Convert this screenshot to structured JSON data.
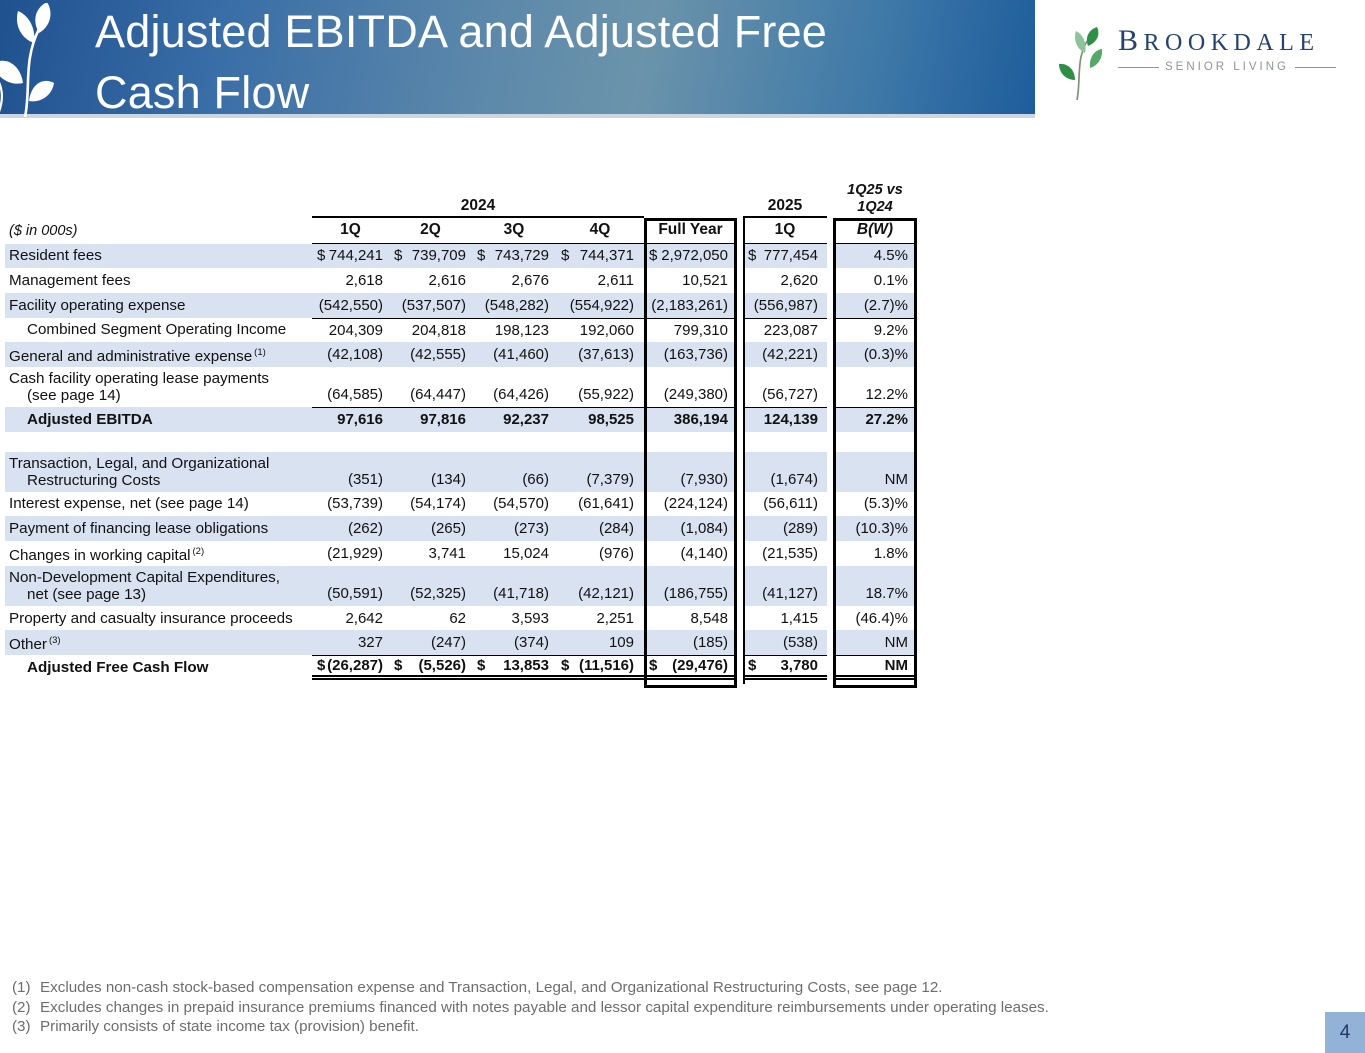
{
  "slide": {
    "title_line1": "Adjusted EBITDA and Adjusted Free",
    "title_line2": "Cash Flow",
    "page_number": "4"
  },
  "logo": {
    "name": "BROOKDALE",
    "tagline": "SENIOR LIVING",
    "leaf_icon": "logo-leaf-icon"
  },
  "table": {
    "units_label": "($ in 000s)",
    "group_2024": "2024",
    "group_2025": "2025",
    "group_compare_line1": "1Q25 vs",
    "group_compare_line2": "1Q24",
    "columns": [
      "1Q",
      "2Q",
      "3Q",
      "4Q",
      "Full Year",
      "1Q",
      "B(W)"
    ],
    "rows": [
      {
        "label": "Resident fees",
        "shade": true,
        "values": [
          "$ 744,241",
          "$ 739,709",
          "$ 743,729",
          "$ 744,371",
          "$2,972,050",
          "$ 777,454",
          "4.5%"
        ]
      },
      {
        "label": "Management fees",
        "values": [
          "2,618",
          "2,616",
          "2,676",
          "2,611",
          "10,521",
          "2,620",
          "0.1%"
        ]
      },
      {
        "label": "Facility operating expense",
        "shade": true,
        "values": [
          "(542,550)",
          "(537,507)",
          "(548,282)",
          "(554,922)",
          "(2,183,261)",
          "(556,987)",
          "(2.7)%"
        ]
      },
      {
        "label": "Combined Segment Operating Income",
        "indent": true,
        "top_line": true,
        "values": [
          "204,309",
          "204,818",
          "198,123",
          "192,060",
          "799,310",
          "223,087",
          "9.2%"
        ]
      },
      {
        "label": "General and administrative expense",
        "sup": "(1)",
        "shade": true,
        "values": [
          "(42,108)",
          "(42,555)",
          "(41,460)",
          "(37,613)",
          "(163,736)",
          "(42,221)",
          "(0.3)%"
        ]
      },
      {
        "label": "Cash facility operating lease payments",
        "label2": "(see page 14)",
        "values": [
          "(64,585)",
          "(64,447)",
          "(64,426)",
          "(55,922)",
          "(249,380)",
          "(56,727)",
          "12.2%"
        ]
      },
      {
        "label": "Adjusted EBITDA",
        "indent": true,
        "bold": true,
        "shade": true,
        "top_line": true,
        "values": [
          "97,616",
          "97,816",
          "92,237",
          "98,525",
          "386,194",
          "124,139",
          "27.2%"
        ]
      },
      {
        "spacer": true
      },
      {
        "label": "Transaction, Legal, and Organizational",
        "label2": "Restructuring Costs",
        "shade": true,
        "values": [
          "(351)",
          "(134)",
          "(66)",
          "(7,379)",
          "(7,930)",
          "(1,674)",
          "NM"
        ]
      },
      {
        "label": "Interest expense, net (see page 14)",
        "values": [
          "(53,739)",
          "(54,174)",
          "(54,570)",
          "(61,641)",
          "(224,124)",
          "(56,611)",
          "(5.3)%"
        ]
      },
      {
        "label": "Payment of financing lease obligations",
        "shade": true,
        "values": [
          "(262)",
          "(265)",
          "(273)",
          "(284)",
          "(1,084)",
          "(289)",
          "(10.3)%"
        ]
      },
      {
        "label": "Changes in working capital",
        "sup": "(2)",
        "values": [
          "(21,929)",
          "3,741",
          "15,024",
          "(976)",
          "(4,140)",
          "(21,535)",
          "1.8%"
        ]
      },
      {
        "label": "Non-Development Capital Expenditures,",
        "label2": "net (see page 13)",
        "shade": true,
        "values": [
          "(50,591)",
          "(52,325)",
          "(41,718)",
          "(42,121)",
          "(186,755)",
          "(41,127)",
          "18.7%"
        ]
      },
      {
        "label": "Property and casualty insurance proceeds",
        "values": [
          "2,642",
          "62",
          "3,593",
          "2,251",
          "8,548",
          "1,415",
          "(46.4)%"
        ]
      },
      {
        "label": "Other",
        "sup": "(3)",
        "shade": true,
        "values": [
          "327",
          "(247)",
          "(374)",
          "109",
          "(185)",
          "(538)",
          "NM"
        ]
      },
      {
        "label": "Adjusted Free Cash Flow",
        "indent": true,
        "bold": true,
        "top_line": true,
        "double_bottom": true,
        "values": [
          "$(26,287)",
          "$ (5,526)",
          "$ 13,853",
          "$(11,516)",
          "$ (29,476)",
          "$ 3,780",
          "NM"
        ]
      }
    ]
  },
  "footnotes": [
    {
      "marker": "(1)",
      "text": "Excludes non-cash stock-based compensation expense and Transaction, Legal, and Organizational Restructuring Costs, see page 12."
    },
    {
      "marker": "(2)",
      "text": "Excludes changes in prepaid insurance premiums financed with notes payable and lessor capital expenditure reimbursements under operating leases."
    },
    {
      "marker": "(3)",
      "text": "Primarily consists of state income tax (provision) benefit."
    }
  ],
  "colors": {
    "banner_left": "#1f518f",
    "banner_mid": "#6b93ab",
    "banner_right": "#1e5c9c",
    "shade": "#d9e2f0",
    "text": "#111111",
    "fgray": "#6d6d6d",
    "logo_navy": "#26426f",
    "logo_gray": "#8e939b",
    "logo_green": "#2f8f47",
    "page_box": "#92b2d8",
    "page_navy": "#1c3a63",
    "banner_rule": "#ccd6e2"
  }
}
